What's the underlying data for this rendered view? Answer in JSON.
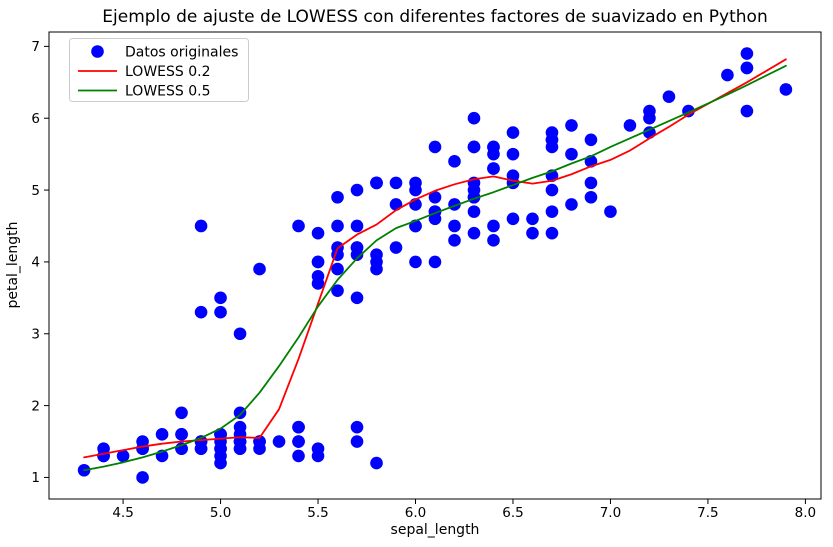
{
  "chart_data": {
    "type": "scatter",
    "title": "Ejemplo de ajuste de LOWESS con diferentes factores de suavizado en Python",
    "xlabel": "sepal_length",
    "ylabel": "petal_length",
    "xlim": [
      4.12,
      8.08
    ],
    "ylim": [
      0.7,
      7.2
    ],
    "xticks": [
      4.5,
      5.0,
      5.5,
      6.0,
      6.5,
      7.0,
      7.5,
      8.0
    ],
    "xtick_labels": [
      "4.5",
      "5.0",
      "5.5",
      "6.0",
      "6.5",
      "7.0",
      "7.5",
      "8.0"
    ],
    "yticks": [
      1,
      2,
      3,
      4,
      5,
      6,
      7
    ],
    "ytick_labels": [
      "1",
      "2",
      "3",
      "4",
      "5",
      "6",
      "7"
    ],
    "grid": false,
    "background_color": "#ffffff",
    "frame_color": "#000000",
    "legend": {
      "position": "upper left",
      "border_color": "#cccccc",
      "fill_color": "#ffffff",
      "fill_opacity": 0.8
    },
    "series": [
      {
        "name": "Datos originales",
        "type": "scatter",
        "color": "#0000ff",
        "marker": "circle",
        "marker_radius": 6.3,
        "points": [
          [
            5.1,
            1.4
          ],
          [
            4.9,
            1.4
          ],
          [
            4.7,
            1.3
          ],
          [
            4.6,
            1.5
          ],
          [
            5.0,
            1.4
          ],
          [
            5.4,
            1.7
          ],
          [
            4.6,
            1.4
          ],
          [
            5.0,
            1.5
          ],
          [
            4.4,
            1.4
          ],
          [
            4.9,
            1.5
          ],
          [
            5.4,
            1.5
          ],
          [
            4.8,
            1.6
          ],
          [
            4.8,
            1.4
          ],
          [
            4.3,
            1.1
          ],
          [
            5.8,
            1.2
          ],
          [
            5.7,
            1.5
          ],
          [
            5.4,
            1.3
          ],
          [
            5.1,
            1.4
          ],
          [
            5.7,
            1.7
          ],
          [
            5.1,
            1.5
          ],
          [
            5.4,
            1.7
          ],
          [
            5.1,
            1.5
          ],
          [
            4.6,
            1.0
          ],
          [
            5.1,
            1.7
          ],
          [
            4.8,
            1.9
          ],
          [
            5.0,
            1.6
          ],
          [
            5.0,
            1.6
          ],
          [
            5.2,
            1.5
          ],
          [
            5.2,
            1.4
          ],
          [
            4.7,
            1.6
          ],
          [
            4.8,
            1.6
          ],
          [
            5.4,
            1.5
          ],
          [
            5.2,
            1.5
          ],
          [
            5.5,
            1.4
          ],
          [
            4.9,
            1.5
          ],
          [
            5.0,
            1.2
          ],
          [
            5.5,
            1.3
          ],
          [
            4.9,
            1.4
          ],
          [
            4.4,
            1.3
          ],
          [
            5.1,
            1.5
          ],
          [
            5.0,
            1.3
          ],
          [
            4.5,
            1.3
          ],
          [
            4.4,
            1.3
          ],
          [
            5.0,
            1.6
          ],
          [
            5.1,
            1.9
          ],
          [
            4.8,
            1.4
          ],
          [
            5.1,
            1.6
          ],
          [
            4.6,
            1.4
          ],
          [
            5.3,
            1.5
          ],
          [
            5.0,
            1.4
          ],
          [
            7.0,
            4.7
          ],
          [
            6.4,
            4.5
          ],
          [
            6.9,
            4.9
          ],
          [
            5.5,
            4.0
          ],
          [
            6.5,
            4.6
          ],
          [
            5.7,
            4.5
          ],
          [
            6.3,
            4.7
          ],
          [
            4.9,
            3.3
          ],
          [
            6.6,
            4.6
          ],
          [
            5.2,
            3.9
          ],
          [
            5.0,
            3.5
          ],
          [
            5.9,
            4.2
          ],
          [
            6.0,
            4.0
          ],
          [
            6.1,
            4.7
          ],
          [
            5.6,
            3.6
          ],
          [
            6.7,
            4.4
          ],
          [
            5.6,
            4.5
          ],
          [
            5.8,
            4.1
          ],
          [
            6.2,
            4.5
          ],
          [
            5.6,
            3.9
          ],
          [
            5.9,
            4.8
          ],
          [
            6.1,
            4.0
          ],
          [
            6.3,
            4.9
          ],
          [
            6.1,
            4.7
          ],
          [
            6.4,
            4.3
          ],
          [
            6.6,
            4.4
          ],
          [
            6.8,
            4.8
          ],
          [
            6.7,
            5.0
          ],
          [
            6.0,
            4.5
          ],
          [
            5.7,
            3.5
          ],
          [
            5.5,
            3.8
          ],
          [
            5.5,
            3.7
          ],
          [
            5.8,
            3.9
          ],
          [
            6.0,
            5.1
          ],
          [
            5.4,
            4.5
          ],
          [
            6.0,
            4.5
          ],
          [
            6.7,
            4.7
          ],
          [
            6.3,
            4.4
          ],
          [
            5.6,
            4.1
          ],
          [
            5.5,
            4.0
          ],
          [
            5.5,
            4.4
          ],
          [
            6.1,
            4.6
          ],
          [
            5.8,
            4.0
          ],
          [
            5.0,
            3.3
          ],
          [
            5.6,
            4.2
          ],
          [
            5.7,
            4.2
          ],
          [
            5.7,
            4.2
          ],
          [
            6.2,
            4.3
          ],
          [
            5.1,
            3.0
          ],
          [
            5.7,
            4.1
          ],
          [
            6.3,
            6.0
          ],
          [
            5.8,
            5.1
          ],
          [
            7.1,
            5.9
          ],
          [
            6.3,
            5.6
          ],
          [
            6.5,
            5.8
          ],
          [
            7.6,
            6.6
          ],
          [
            4.9,
            4.5
          ],
          [
            7.3,
            6.3
          ],
          [
            6.7,
            5.8
          ],
          [
            7.2,
            6.1
          ],
          [
            6.5,
            5.1
          ],
          [
            6.4,
            5.3
          ],
          [
            6.8,
            5.5
          ],
          [
            5.7,
            5.0
          ],
          [
            5.8,
            5.1
          ],
          [
            6.4,
            5.3
          ],
          [
            6.5,
            5.5
          ],
          [
            7.7,
            6.7
          ],
          [
            7.7,
            6.9
          ],
          [
            6.0,
            5.0
          ],
          [
            6.9,
            5.7
          ],
          [
            5.6,
            4.9
          ],
          [
            7.7,
            6.7
          ],
          [
            6.3,
            4.9
          ],
          [
            6.7,
            5.7
          ],
          [
            7.2,
            6.0
          ],
          [
            6.2,
            4.8
          ],
          [
            6.1,
            4.9
          ],
          [
            6.4,
            5.6
          ],
          [
            7.2,
            5.8
          ],
          [
            7.4,
            6.1
          ],
          [
            7.9,
            6.4
          ],
          [
            6.4,
            5.6
          ],
          [
            6.3,
            5.1
          ],
          [
            6.1,
            5.6
          ],
          [
            7.7,
            6.1
          ],
          [
            6.3,
            5.6
          ],
          [
            6.4,
            5.5
          ],
          [
            6.0,
            4.8
          ],
          [
            6.9,
            5.4
          ],
          [
            6.7,
            5.6
          ],
          [
            6.9,
            5.1
          ],
          [
            5.8,
            5.1
          ],
          [
            6.8,
            5.9
          ],
          [
            6.7,
            5.7
          ],
          [
            6.7,
            5.2
          ],
          [
            6.3,
            5.0
          ],
          [
            6.5,
            5.2
          ],
          [
            6.2,
            5.4
          ],
          [
            5.9,
            5.1
          ]
        ]
      },
      {
        "name": "LOWESS 0.2",
        "type": "line",
        "color": "#ff0000",
        "points": [
          [
            4.3,
            1.28
          ],
          [
            4.4,
            1.33
          ],
          [
            4.5,
            1.38
          ],
          [
            4.6,
            1.43
          ],
          [
            4.7,
            1.47
          ],
          [
            4.8,
            1.5
          ],
          [
            4.9,
            1.52
          ],
          [
            5.0,
            1.54
          ],
          [
            5.1,
            1.56
          ],
          [
            5.2,
            1.55
          ],
          [
            5.3,
            1.95
          ],
          [
            5.4,
            2.65
          ],
          [
            5.5,
            3.42
          ],
          [
            5.6,
            4.19
          ],
          [
            5.7,
            4.38
          ],
          [
            5.8,
            4.52
          ],
          [
            5.9,
            4.72
          ],
          [
            6.0,
            4.87
          ],
          [
            6.1,
            4.99
          ],
          [
            6.2,
            5.08
          ],
          [
            6.3,
            5.15
          ],
          [
            6.4,
            5.19
          ],
          [
            6.5,
            5.13
          ],
          [
            6.6,
            5.09
          ],
          [
            6.7,
            5.13
          ],
          [
            6.8,
            5.22
          ],
          [
            6.9,
            5.33
          ],
          [
            7.0,
            5.42
          ],
          [
            7.1,
            5.55
          ],
          [
            7.2,
            5.72
          ],
          [
            7.3,
            5.88
          ],
          [
            7.4,
            6.05
          ],
          [
            7.6,
            6.35
          ],
          [
            7.7,
            6.5
          ],
          [
            7.9,
            6.82
          ]
        ]
      },
      {
        "name": "LOWESS 0.5",
        "type": "line",
        "color": "#008000",
        "points": [
          [
            4.3,
            1.1
          ],
          [
            4.4,
            1.15
          ],
          [
            4.5,
            1.21
          ],
          [
            4.6,
            1.28
          ],
          [
            4.7,
            1.36
          ],
          [
            4.8,
            1.45
          ],
          [
            4.9,
            1.55
          ],
          [
            5.0,
            1.68
          ],
          [
            5.1,
            1.87
          ],
          [
            5.2,
            2.18
          ],
          [
            5.3,
            2.55
          ],
          [
            5.4,
            2.95
          ],
          [
            5.5,
            3.38
          ],
          [
            5.6,
            3.75
          ],
          [
            5.7,
            4.05
          ],
          [
            5.8,
            4.3
          ],
          [
            5.9,
            4.47
          ],
          [
            6.0,
            4.57
          ],
          [
            6.1,
            4.68
          ],
          [
            6.2,
            4.78
          ],
          [
            6.3,
            4.88
          ],
          [
            6.4,
            4.97
          ],
          [
            6.5,
            5.07
          ],
          [
            6.6,
            5.17
          ],
          [
            6.7,
            5.26
          ],
          [
            6.8,
            5.37
          ],
          [
            6.9,
            5.47
          ],
          [
            7.0,
            5.6
          ],
          [
            7.1,
            5.72
          ],
          [
            7.2,
            5.84
          ],
          [
            7.3,
            5.96
          ],
          [
            7.4,
            6.08
          ],
          [
            7.6,
            6.33
          ],
          [
            7.7,
            6.46
          ],
          [
            7.9,
            6.73
          ]
        ]
      }
    ]
  }
}
